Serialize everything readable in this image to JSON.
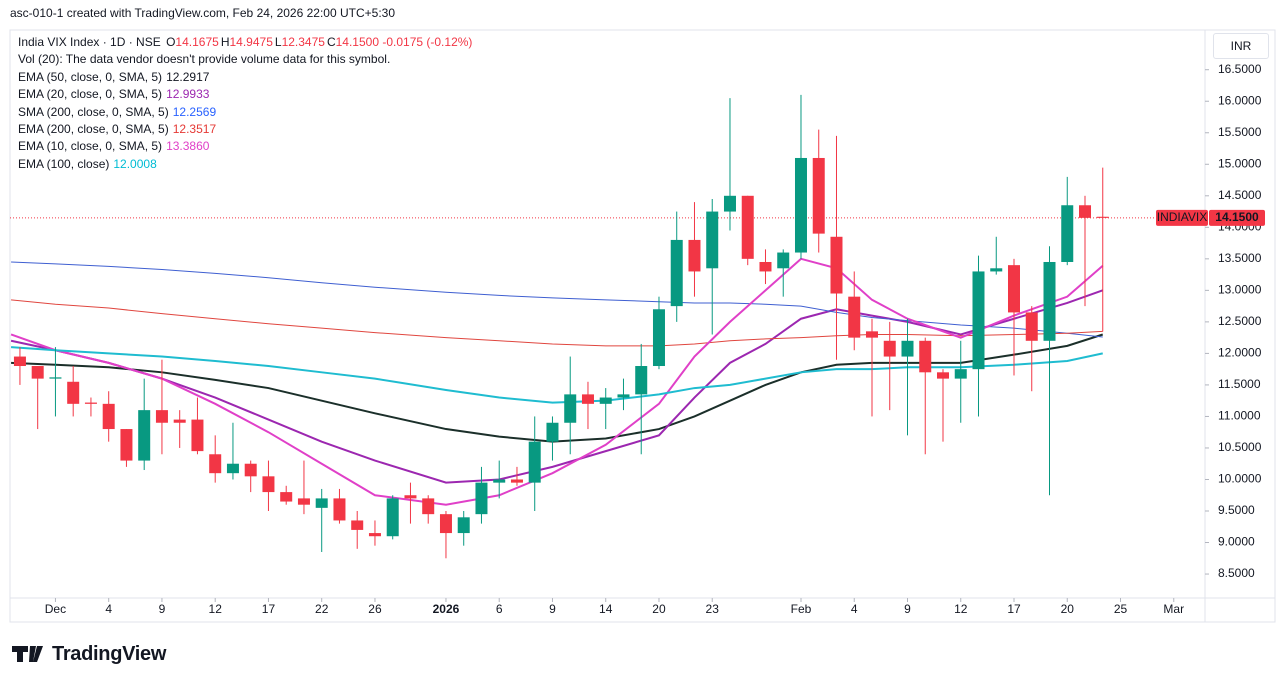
{
  "header": {
    "created": "asc-010-1 created with TradingView.com, Feb 24, 2026 22:00 UTC+5:30",
    "symbol_line": "India VIX Index · 1D · NSE",
    "ohlc": [
      {
        "key": "O",
        "value": "14.1675"
      },
      {
        "key": "H",
        "value": "14.9475"
      },
      {
        "key": "L",
        "value": "12.3475"
      },
      {
        "key": "C",
        "value": "14.1500"
      }
    ],
    "change": "-0.0175 (-0.12%)",
    "volume_note": "Vol (20): The data vendor doesn't provide volume data for this symbol.",
    "currency": "INR"
  },
  "chart_data": {
    "type": "candlestick",
    "up_color": "#089981",
    "down_color": "#f23645",
    "open": [
      11.95,
      11.8,
      11.6,
      11.55,
      11.22,
      11.2,
      10.8,
      10.3,
      11.1,
      10.95,
      10.95,
      10.4,
      10.1,
      10.25,
      10.05,
      9.8,
      9.7,
      9.55,
      9.7,
      9.35,
      9.15,
      9.1,
      9.75,
      9.7,
      9.45,
      9.15,
      9.45,
      9.95,
      10.0,
      9.95,
      10.6,
      10.9,
      11.35,
      11.2,
      11.3,
      11.35,
      11.8,
      12.75,
      13.8,
      13.35,
      14.25,
      14.5,
      13.45,
      13.35,
      13.6,
      15.1,
      13.85,
      12.9,
      12.35,
      12.2,
      11.95,
      12.2,
      11.7,
      11.6,
      11.75,
      13.3,
      13.4,
      12.65,
      12.2,
      13.45,
      14.35,
      14.1675
    ],
    "high": [
      12.1,
      11.8,
      12.1,
      11.8,
      11.3,
      11.4,
      10.8,
      11.6,
      11.9,
      11.1,
      11.3,
      10.7,
      10.9,
      10.3,
      10.3,
      9.9,
      10.3,
      9.85,
      9.85,
      9.5,
      9.35,
      9.75,
      9.95,
      9.75,
      9.5,
      9.5,
      10.2,
      10.3,
      10.2,
      11.0,
      11.0,
      11.95,
      11.55,
      11.45,
      11.6,
      12.15,
      12.9,
      14.25,
      14.4,
      14.45,
      16.05,
      14.5,
      13.65,
      13.65,
      16.1,
      15.55,
      15.45,
      13.3,
      12.55,
      12.5,
      12.55,
      12.25,
      11.75,
      12.2,
      13.55,
      13.85,
      13.5,
      12.75,
      13.7,
      14.8,
      14.5,
      14.9475
    ],
    "low": [
      11.5,
      10.8,
      11.0,
      11.0,
      11.0,
      10.6,
      10.2,
      10.15,
      10.4,
      10.5,
      10.4,
      9.95,
      10.0,
      9.8,
      9.5,
      9.6,
      9.45,
      8.85,
      9.3,
      8.9,
      8.95,
      9.05,
      9.3,
      9.3,
      8.75,
      8.95,
      9.3,
      9.7,
      9.9,
      9.5,
      10.3,
      10.4,
      10.8,
      10.8,
      11.1,
      10.4,
      11.75,
      12.5,
      12.9,
      12.3,
      13.95,
      13.4,
      13.1,
      12.9,
      13.5,
      13.6,
      11.9,
      12.05,
      11.0,
      11.1,
      10.7,
      10.4,
      10.6,
      10.9,
      11.0,
      13.25,
      11.65,
      11.4,
      9.75,
      13.4,
      12.75,
      12.3475
    ],
    "close": [
      11.8,
      11.6,
      11.62,
      11.2,
      11.2,
      10.8,
      10.3,
      11.1,
      10.9,
      10.9,
      10.45,
      10.1,
      10.25,
      10.05,
      9.8,
      9.65,
      9.6,
      9.7,
      9.35,
      9.2,
      9.1,
      9.7,
      9.7,
      9.45,
      9.15,
      9.4,
      9.95,
      10.0,
      9.95,
      10.6,
      10.9,
      11.35,
      11.2,
      11.3,
      11.35,
      11.8,
      12.7,
      13.8,
      13.3,
      14.25,
      14.5,
      13.5,
      13.3,
      13.6,
      15.1,
      13.9,
      12.95,
      12.25,
      12.25,
      11.95,
      12.2,
      11.7,
      11.6,
      11.75,
      13.3,
      13.35,
      12.65,
      12.2,
      13.45,
      14.35,
      14.15,
      14.15
    ],
    "series": [
      {
        "name": "EMA (50, close, 0, SMA, 5)",
        "legend_value": "12.2917",
        "color": "#1b2f2a",
        "legend_color": "#131722",
        "width": 2,
        "x": [
          -0.5,
          2,
          5,
          8,
          11,
          14,
          17,
          20,
          24,
          27,
          30,
          33,
          36,
          38,
          40,
          42,
          44,
          46,
          48,
          50,
          53,
          56,
          59,
          61
        ],
        "values": [
          11.85,
          11.82,
          11.78,
          11.7,
          11.58,
          11.45,
          11.25,
          11.05,
          10.8,
          10.68,
          10.6,
          10.65,
          10.8,
          11.0,
          11.25,
          11.5,
          11.7,
          11.82,
          11.85,
          11.85,
          11.85,
          11.98,
          12.12,
          12.3
        ]
      },
      {
        "name": "EMA (20, close, 0, SMA, 5)",
        "legend_value": "12.9933",
        "color": "#9c27b0",
        "legend_color": "#9c27b0",
        "width": 2,
        "x": [
          -0.5,
          2,
          5,
          8,
          11,
          14,
          17,
          20,
          24,
          27,
          30,
          33,
          36,
          38,
          40,
          42,
          44,
          46,
          48,
          50,
          53,
          56,
          59,
          61
        ],
        "values": [
          12.2,
          12.05,
          11.85,
          11.6,
          11.3,
          10.95,
          10.6,
          10.3,
          9.95,
          10.0,
          10.2,
          10.45,
          10.7,
          11.3,
          11.85,
          12.15,
          12.55,
          12.7,
          12.6,
          12.5,
          12.3,
          12.55,
          12.8,
          13.0
        ]
      },
      {
        "name": "SMA (200, close, 0, SMA, 5)",
        "legend_value": "12.2569",
        "color": "#3f5fd1",
        "legend_color": "#2962ff",
        "width": 1,
        "x": [
          -0.5,
          2,
          5,
          8,
          11,
          14,
          17,
          20,
          24,
          27,
          30,
          33,
          36,
          38,
          40,
          42,
          44,
          46,
          48,
          50,
          53,
          56,
          59,
          61
        ],
        "values": [
          13.45,
          13.42,
          13.38,
          13.33,
          13.27,
          13.2,
          13.12,
          13.05,
          12.97,
          12.92,
          12.88,
          12.85,
          12.82,
          12.8,
          12.8,
          12.78,
          12.75,
          12.65,
          12.57,
          12.52,
          12.45,
          12.4,
          12.32,
          12.26
        ]
      },
      {
        "name": "EMA (200, close, 0, SMA, 5)",
        "legend_value": "12.3517",
        "color": "#e0463f",
        "legend_color": "#e53935",
        "width": 1,
        "x": [
          -0.5,
          2,
          5,
          8,
          11,
          14,
          17,
          20,
          24,
          27,
          30,
          33,
          36,
          38,
          40,
          42,
          44,
          46,
          48,
          50,
          53,
          56,
          59,
          61
        ],
        "values": [
          12.85,
          12.78,
          12.72,
          12.63,
          12.55,
          12.47,
          12.4,
          12.33,
          12.25,
          12.2,
          12.15,
          12.12,
          12.12,
          12.15,
          12.2,
          12.23,
          12.25,
          12.28,
          12.3,
          12.3,
          12.28,
          12.3,
          12.32,
          12.35
        ]
      },
      {
        "name": "EMA (10, close, 0, SMA, 5)",
        "legend_value": "13.3860",
        "color": "#e040c8",
        "legend_color": "#e040c8",
        "width": 2,
        "x": [
          -0.5,
          2,
          5,
          8,
          11,
          14,
          17,
          20,
          24,
          27,
          30,
          33,
          36,
          38,
          40,
          42,
          44,
          46,
          48,
          50,
          53,
          56,
          59,
          61
        ],
        "values": [
          12.3,
          12.05,
          11.85,
          11.6,
          11.2,
          10.75,
          10.25,
          9.75,
          9.6,
          9.75,
          10.1,
          10.55,
          11.2,
          11.95,
          12.5,
          13.0,
          13.5,
          13.35,
          12.85,
          12.55,
          12.25,
          12.6,
          12.9,
          13.39
        ]
      },
      {
        "name": "EMA (100, close)",
        "legend_value": "12.0008",
        "color": "#1fbcd0",
        "legend_color": "#00bcd4",
        "width": 2,
        "x": [
          -0.5,
          2,
          5,
          8,
          11,
          14,
          17,
          20,
          24,
          27,
          30,
          33,
          36,
          38,
          40,
          42,
          44,
          46,
          48,
          50,
          53,
          56,
          59,
          61
        ],
        "values": [
          12.1,
          12.05,
          12.0,
          11.95,
          11.88,
          11.8,
          11.7,
          11.6,
          11.42,
          11.3,
          11.22,
          11.25,
          11.35,
          11.45,
          11.5,
          11.6,
          11.7,
          11.75,
          11.75,
          11.78,
          11.78,
          11.82,
          11.88,
          12.0
        ]
      }
    ],
    "xlim": [
      -0.56,
      66.76
    ],
    "xticks": [
      {
        "value": 2,
        "label": "Dec"
      },
      {
        "value": 5,
        "label": "4"
      },
      {
        "value": 8,
        "label": "9"
      },
      {
        "value": 11,
        "label": "12"
      },
      {
        "value": 14,
        "label": "17"
      },
      {
        "value": 17,
        "label": "22"
      },
      {
        "value": 20,
        "label": "26"
      },
      {
        "value": 24,
        "label": "2026",
        "bold": true
      },
      {
        "value": 27,
        "label": "6"
      },
      {
        "value": 30,
        "label": "9"
      },
      {
        "value": 33,
        "label": "14"
      },
      {
        "value": 36,
        "label": "20"
      },
      {
        "value": 39,
        "label": "23"
      },
      {
        "value": 44,
        "label": "Feb"
      },
      {
        "value": 47,
        "label": "4"
      },
      {
        "value": 50,
        "label": "9"
      },
      {
        "value": 53,
        "label": "12"
      },
      {
        "value": 56,
        "label": "17"
      },
      {
        "value": 59,
        "label": "20"
      },
      {
        "value": 62,
        "label": "25"
      },
      {
        "value": 65,
        "label": "Mar"
      }
    ],
    "ylim": [
      8.12,
      17.13
    ],
    "yticks": [
      {
        "value": 8.5,
        "label": "8.5000"
      },
      {
        "value": 9,
        "label": "9.0000"
      },
      {
        "value": 9.5,
        "label": "9.5000"
      },
      {
        "value": 10,
        "label": "10.0000"
      },
      {
        "value": 10.5,
        "label": "10.5000"
      },
      {
        "value": 11,
        "label": "11.0000"
      },
      {
        "value": 11.5,
        "label": "11.5000"
      },
      {
        "value": 12,
        "label": "12.0000"
      },
      {
        "value": 12.5,
        "label": "12.5000"
      },
      {
        "value": 13,
        "label": "13.0000"
      },
      {
        "value": 13.5,
        "label": "13.5000"
      },
      {
        "value": 14,
        "label": "14.0000"
      },
      {
        "value": 14.5,
        "label": "14.5000"
      },
      {
        "value": 15,
        "label": "15.0000"
      },
      {
        "value": 15.5,
        "label": "15.5000"
      },
      {
        "value": 16,
        "label": "16.0000"
      },
      {
        "value": 16.5,
        "label": "16.5000"
      }
    ],
    "last_price": {
      "value": 14.15,
      "label": "14.1500",
      "symbol": "INDIAVIX",
      "color": "#f23645"
    }
  },
  "footer": {
    "brand": "TradingView"
  }
}
